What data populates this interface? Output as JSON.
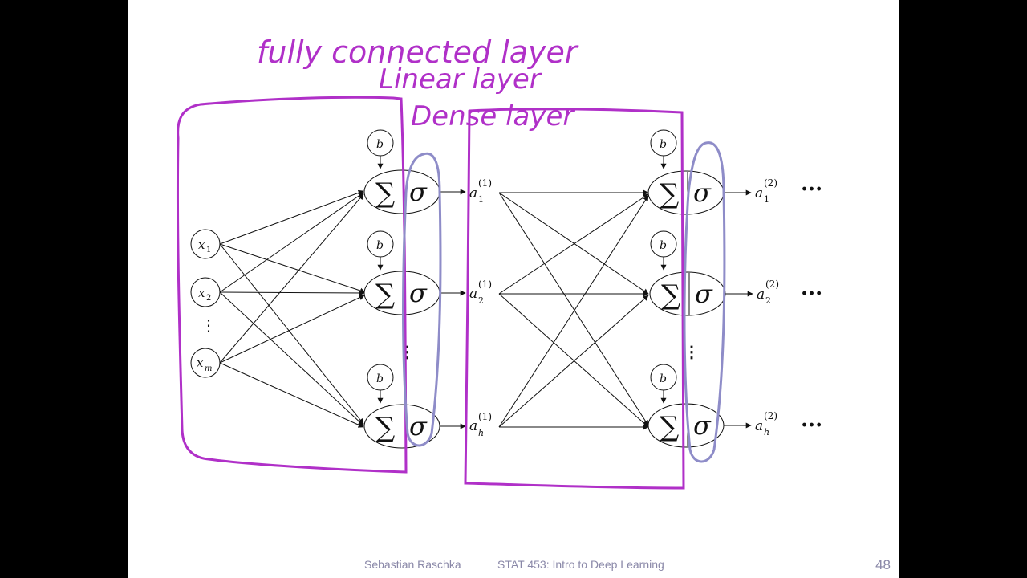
{
  "annotations": {
    "line1": "fully connected layer",
    "line2": "Linear layer",
    "line3": "Dense layer"
  },
  "inputs": [
    {
      "base": "x",
      "sub": "1"
    },
    {
      "base": "x",
      "sub": "2"
    },
    {
      "base": "x",
      "sub": "m"
    }
  ],
  "bias_label": "b",
  "sum_symbol": "∑",
  "activation_symbol": "σ",
  "layer1_outputs": [
    {
      "base": "a",
      "sub": "1",
      "sup": "(1)"
    },
    {
      "base": "a",
      "sub": "2",
      "sup": "(1)"
    },
    {
      "base": "a",
      "sub": "h",
      "sup": "(1)"
    }
  ],
  "layer2_outputs": [
    {
      "base": "a",
      "sub": "1",
      "sup": "(2)"
    },
    {
      "base": "a",
      "sub": "2",
      "sup": "(2)"
    },
    {
      "base": "a",
      "sub": "h",
      "sup": "(2)"
    }
  ],
  "vdots": "⋮",
  "continuation": "···",
  "footer": {
    "author": "Sebastian Raschka",
    "course": "STAT 453: Intro to Deep Learning",
    "page": "48"
  },
  "colors": {
    "annotation_purple": "#b030c8",
    "highlight_lavender": "#8e8cc8",
    "footer_text": "#8a88a8"
  }
}
